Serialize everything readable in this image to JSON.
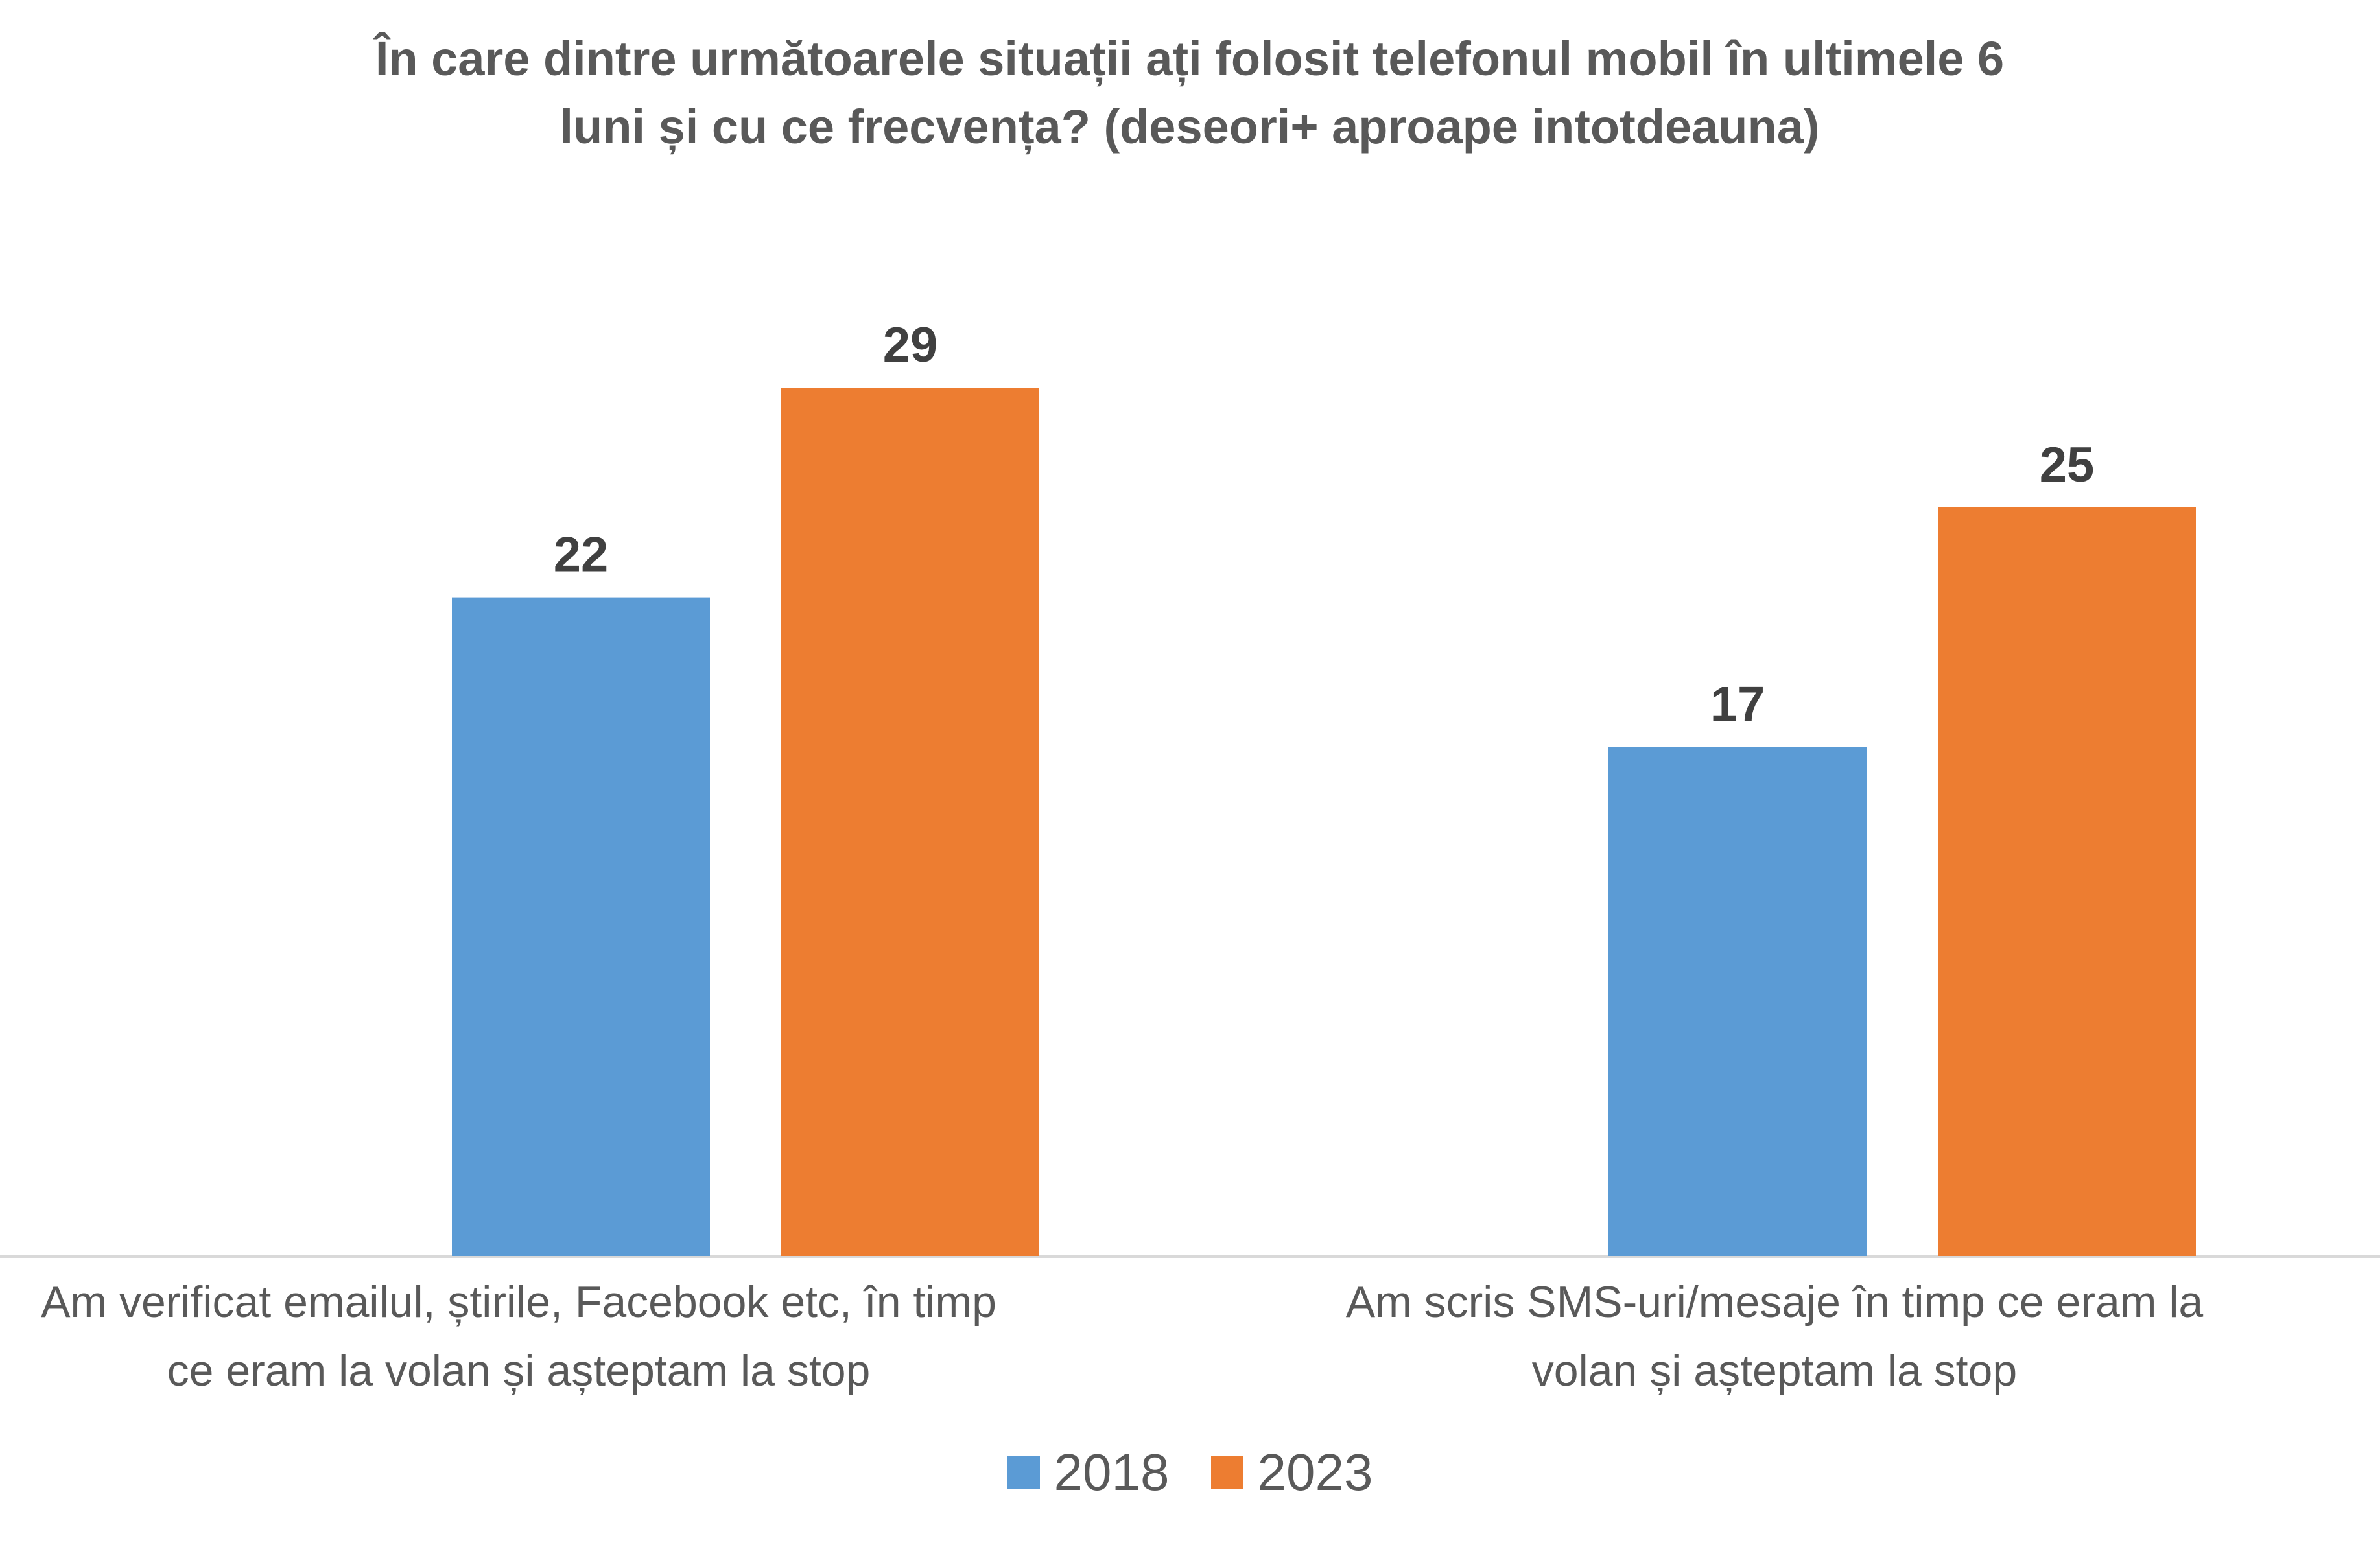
{
  "chart_data": {
    "type": "bar",
    "title_lines": [
      "În care dintre următoarele situații ați folosit telefonul mobil în ultimele 6",
      "luni și cu ce frecvența? (deseori+ aproape intotdeauna)"
    ],
    "categories": [
      {
        "lines": [
          "Am verificat emailul, știrile, Facebook etc, în timp",
          "ce eram la volan și așteptam la stop"
        ]
      },
      {
        "lines": [
          "Am scris SMS-uri/mesaje în timp ce eram la",
          "volan și așteptam la stop"
        ]
      }
    ],
    "series": [
      {
        "name": "2018",
        "color": "#5B9BD5",
        "values": [
          22,
          17
        ]
      },
      {
        "name": "2023",
        "color": "#ED7D31",
        "values": [
          29,
          25
        ]
      }
    ],
    "ylim": [
      0,
      29
    ],
    "grid": false,
    "data_labels": true,
    "legend_position": "bottom"
  }
}
